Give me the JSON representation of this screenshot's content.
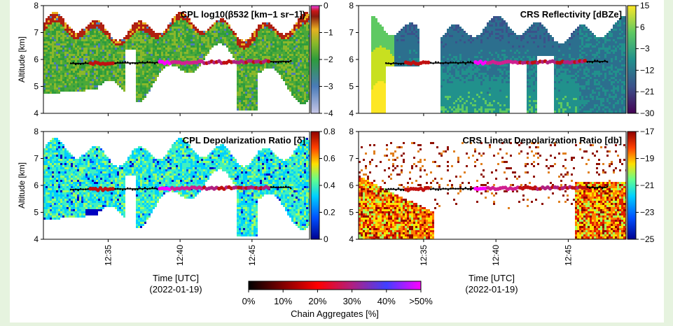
{
  "figure": {
    "xaxis_label": "Time [UTC]",
    "xaxis_sublabel": "(2022-01-19)",
    "time_ticks": [
      "12:35",
      "12:40",
      "12:45"
    ],
    "colorbar": {
      "label": "Chain Aggregates [%]",
      "ticks": [
        "0%",
        "10%",
        "20%",
        "30%",
        "40%",
        ">50%"
      ]
    }
  },
  "chart_data": [
    {
      "type": "heatmap",
      "title": "CPL log10(β532 [km−1 sr−1])",
      "ylabel": "Altitude [km]",
      "ylim": [
        4,
        8
      ],
      "yticks": [
        "4",
        "5",
        "6",
        "7",
        "8"
      ],
      "colorbar_ticks": [
        "0",
        "−1",
        "−2",
        "−3",
        "−4"
      ],
      "colorbar_range": [
        -4,
        0
      ],
      "colormap": [
        "#c8c8e8",
        "#4a7bb8",
        "#2e9c3c",
        "#5ab030",
        "#e8b020",
        "#8a1a10",
        "#e840e8"
      ]
    },
    {
      "type": "heatmap",
      "title": "CRS Reflectivity [dBZe]",
      "ylabel": "",
      "ylim": [
        4,
        8
      ],
      "yticks": [
        "4",
        "5",
        "6",
        "7",
        "8"
      ],
      "colorbar_ticks": [
        "15",
        "6",
        "−3",
        "−12",
        "−21",
        "−30"
      ],
      "colorbar_range": [
        -30,
        15
      ],
      "colormap": [
        "#440154",
        "#3b528b",
        "#21918c",
        "#5ec962",
        "#fde725"
      ]
    },
    {
      "type": "heatmap",
      "title": "CPL Depolarization Ratio [δ]",
      "ylabel": "Altitude [km]",
      "ylim": [
        4,
        8
      ],
      "yticks": [
        "4",
        "5",
        "6",
        "7",
        "8"
      ],
      "colorbar_ticks": [
        "0.8",
        "0.6",
        "0.4",
        "0.2",
        "0"
      ],
      "colorbar_range": [
        0,
        0.8
      ],
      "colormap": [
        "#00008f",
        "#0050ff",
        "#00d0ff",
        "#60ff90",
        "#ffe000",
        "#ff4000",
        "#8f0000"
      ]
    },
    {
      "type": "heatmap",
      "title": "CRS Linear Depolarization Ratio [db]",
      "ylabel": "",
      "ylim": [
        4,
        8
      ],
      "yticks": [
        "−17",
        "−19",
        "−21",
        "−23",
        "−25"
      ],
      "colorbar_ticks": [
        "−17",
        "−19",
        "−21",
        "−23",
        "−25"
      ],
      "colorbar_range": [
        -25,
        -17
      ],
      "left_axis_ticks": [
        "4",
        "5",
        "6",
        "7",
        "8"
      ],
      "colormap": [
        "#00008f",
        "#0050ff",
        "#00d0ff",
        "#60ff90",
        "#ffe000",
        "#ff4000",
        "#8f0000"
      ]
    }
  ],
  "chain_aggregates_colormap": [
    "#000000",
    "#800000",
    "#ff0000",
    "#d02090",
    "#4040ff",
    "#ff00ff"
  ],
  "colors": {
    "background": "#e6f3df",
    "panel": "#ffffff",
    "axis": "#000000"
  }
}
